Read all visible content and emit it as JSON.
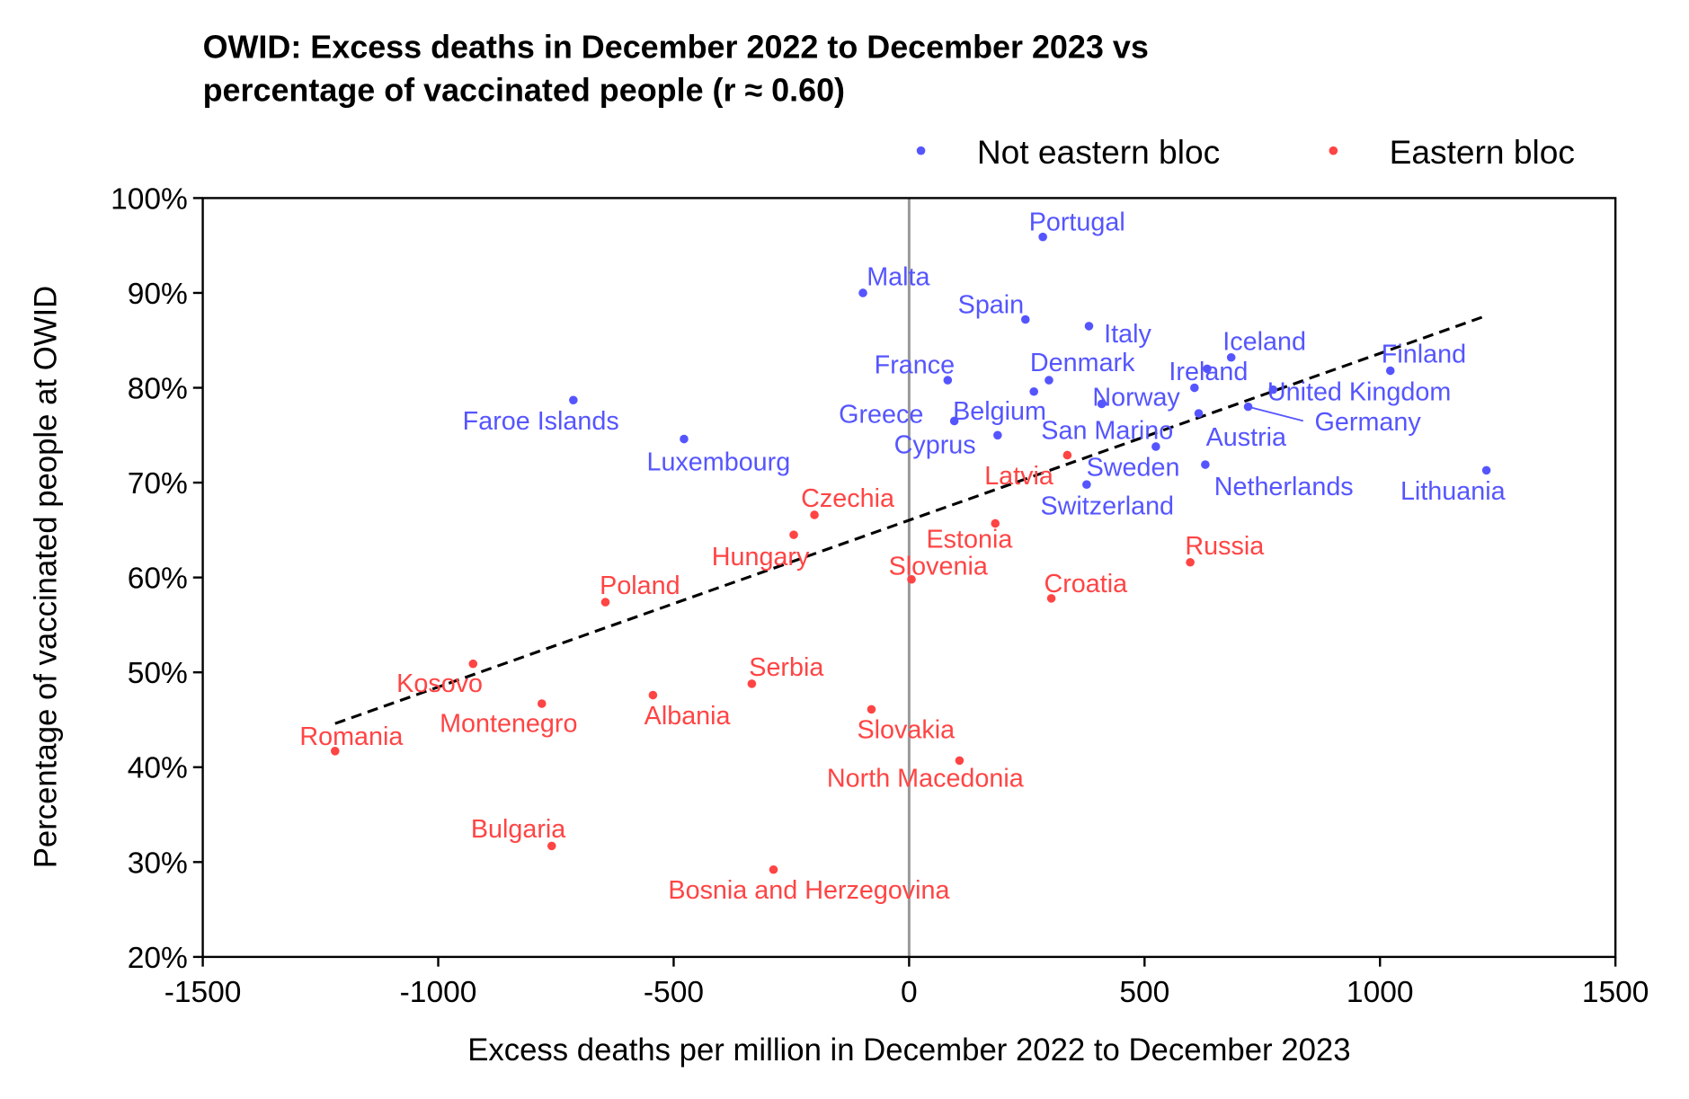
{
  "chart_data": {
    "type": "scatter",
    "title": "OWID: Excess deaths in December 2022 to December 2023 vs percentage of vaccinated people (r ≈ 0.60)",
    "title_lines": [
      "OWID: Excess deaths in December 2022 to December 2023 vs",
      "percentage of vaccinated people (r ≈ 0.60)"
    ],
    "xlabel": "Excess deaths per million in December 2022 to December 2023",
    "ylabel": "Percentage of vaccinated people at OWID",
    "xlim": [
      -1500,
      1500
    ],
    "ylim": [
      20,
      100
    ],
    "xticks": [
      -1500,
      -1000,
      -500,
      0,
      500,
      1000,
      1500
    ],
    "xtick_labels": [
      "-1500",
      "-1000",
      "-500",
      "0",
      "500",
      "1000",
      "1500"
    ],
    "yticks": [
      20,
      30,
      40,
      50,
      60,
      70,
      80,
      90,
      100
    ],
    "ytick_labels": [
      "20%",
      "30%",
      "40%",
      "50%",
      "60%",
      "70%",
      "80%",
      "90%",
      "100%"
    ],
    "grid": false,
    "legend": {
      "placement": "top-right",
      "entries": [
        {
          "name": "Not eastern bloc",
          "color": "#5555ff"
        },
        {
          "name": "Eastern bloc",
          "color": "#ff4444"
        }
      ]
    },
    "trendline": {
      "style": "dashed",
      "color": "#000000",
      "x": [
        -1219,
        1226
      ],
      "y": [
        44.6,
        87.6
      ]
    },
    "zero_line_color": "#999999",
    "series": [
      {
        "name": "Not eastern bloc",
        "color": "#5555ff",
        "points": [
          {
            "label": "Portugal",
            "x": 284,
            "y": 95.9
          },
          {
            "label": "Malta",
            "x": -98,
            "y": 90.0
          },
          {
            "label": "Spain",
            "x": 247,
            "y": 87.2
          },
          {
            "label": "Italy",
            "x": 382,
            "y": 86.5
          },
          {
            "label": "Iceland",
            "x": 684,
            "y": 83.2
          },
          {
            "label": "Finland",
            "x": 1022,
            "y": 81.8
          },
          {
            "label": "France",
            "x": 82,
            "y": 80.8
          },
          {
            "label": "Denmark",
            "x": 297,
            "y": 80.8
          },
          {
            "label": "Ireland",
            "x": 633,
            "y": 82.0
          },
          {
            "label": "Norway",
            "x": 409,
            "y": 78.3
          },
          {
            "label": "United Kingdom",
            "x": 773,
            "y": 79.8
          },
          {
            "label": "Germany",
            "x": 720,
            "y": 78.0
          },
          {
            "label": "Faroe Islands",
            "x": -713,
            "y": 78.7
          },
          {
            "label": "Greece",
            "x": 96,
            "y": 76.5
          },
          {
            "label": "Belgium",
            "x": 265,
            "y": 79.6
          },
          {
            "label": "San Marino",
            "x": 524,
            "y": 73.8
          },
          {
            "label": "Cyprus",
            "x": 188,
            "y": 75.0
          },
          {
            "label": "Austria",
            "x": 615,
            "y": 77.3
          },
          {
            "label": "Luxembourg",
            "x": -478,
            "y": 74.6
          },
          {
            "label": "Sweden",
            "x": 606,
            "y": 80.0
          },
          {
            "label": "Netherlands",
            "x": 629,
            "y": 71.9
          },
          {
            "label": "Lithuania",
            "x": 1226,
            "y": 71.3
          },
          {
            "label": "Switzerland",
            "x": 377,
            "y": 69.8
          }
        ]
      },
      {
        "name": "Eastern bloc",
        "color": "#ff4444",
        "points": [
          {
            "label": "Latvia",
            "x": 336,
            "y": 72.9
          },
          {
            "label": "Czechia",
            "x": -201,
            "y": 66.6
          },
          {
            "label": "Estonia",
            "x": 183,
            "y": 65.7
          },
          {
            "label": "Hungary",
            "x": -245,
            "y": 64.5
          },
          {
            "label": "Slovenia",
            "x": 5,
            "y": 59.8
          },
          {
            "label": "Russia",
            "x": 597,
            "y": 61.6
          },
          {
            "label": "Poland",
            "x": -645,
            "y": 57.4
          },
          {
            "label": "Croatia",
            "x": 302,
            "y": 57.8
          },
          {
            "label": "Kosovo",
            "x": -926,
            "y": 50.9
          },
          {
            "label": "Serbia",
            "x": -334,
            "y": 48.8
          },
          {
            "label": "Montenegro",
            "x": -780,
            "y": 46.7
          },
          {
            "label": "Albania",
            "x": -544,
            "y": 47.6
          },
          {
            "label": "Romania",
            "x": -1219,
            "y": 41.7
          },
          {
            "label": "Slovakia",
            "x": -80,
            "y": 46.1
          },
          {
            "label": "North Macedonia",
            "x": 107,
            "y": 40.7
          },
          {
            "label": "Bulgaria",
            "x": -759,
            "y": 31.7
          },
          {
            "label": "Bosnia and Herzegovina",
            "x": -288,
            "y": 29.2
          }
        ]
      }
    ]
  }
}
